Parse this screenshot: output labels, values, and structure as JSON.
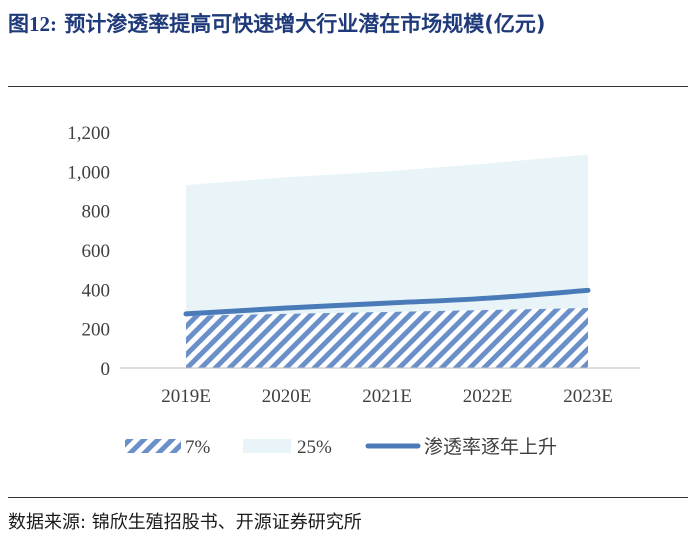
{
  "header": {
    "title_prefix": "图",
    "title_number": "12:",
    "title_text": "预计渗透率提高可快速增大行业潜在市场规模(亿元)"
  },
  "source": "数据来源: 锦欣生殖招股书、开源证券研究所",
  "colors": {
    "area_25": "#e8f4f8",
    "hatch": "#6b8fc8",
    "line": "#4a7ab8",
    "title": "#1f3a7a"
  },
  "chart_data": {
    "type": "area",
    "categories": [
      "2019E",
      "2020E",
      "2021E",
      "2022E",
      "2023E"
    ],
    "ylim": [
      0,
      1200
    ],
    "yticks": [
      0,
      200,
      400,
      600,
      800,
      1000,
      1200
    ],
    "ytick_labels": [
      "0",
      "200",
      "400",
      "600",
      "800",
      "1,000",
      "1,200"
    ],
    "grid": false,
    "legend_position": "bottom",
    "series": [
      {
        "name": "7%",
        "kind": "area-hatched",
        "values": [
          265,
          275,
          285,
          295,
          305
        ]
      },
      {
        "name": "25%",
        "kind": "area",
        "values": [
          930,
          970,
          1000,
          1040,
          1085
        ]
      },
      {
        "name": "渗透率逐年上升",
        "kind": "line",
        "values": [
          275,
          305,
          330,
          355,
          395
        ]
      }
    ]
  }
}
